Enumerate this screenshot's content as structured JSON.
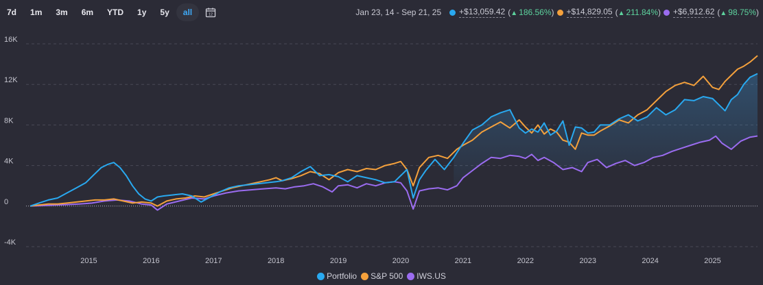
{
  "toolbar": {
    "ranges": [
      "7d",
      "1m",
      "3m",
      "6m",
      "YTD",
      "1y",
      "5y",
      "all"
    ],
    "active": "all",
    "calendar_icon": "calendar-icon"
  },
  "summary": {
    "date_range": "Jan 23, 14 - Sep 21, 25",
    "items": [
      {
        "gain": "+$13,059.42",
        "pct": "186.56%",
        "color": "#29a9f0"
      },
      {
        "gain": "+$14,829.05",
        "pct": "211.84%",
        "color": "#f5a13c"
      },
      {
        "gain": "+$6,912.62",
        "pct": "98.75%",
        "color": "#9b6cf0"
      }
    ]
  },
  "legend": [
    {
      "label": "Portfolio",
      "color": "#29a9f0"
    },
    {
      "label": "S&P 500",
      "color": "#f5a13c"
    },
    {
      "label": "IWS.US",
      "color": "#9b6cf0"
    }
  ],
  "chart_data": {
    "type": "line",
    "xlabel": "",
    "ylabel": "",
    "ylim": [
      -4000,
      16000
    ],
    "xlim": [
      2014.06,
      2025.72
    ],
    "y_ticks": [
      -4000,
      0,
      4000,
      8000,
      12000,
      16000
    ],
    "y_tick_labels": [
      "-4K",
      "0",
      "4K",
      "8K",
      "12K",
      "16K"
    ],
    "x_ticks": [
      2015,
      2016,
      2017,
      2018,
      2019,
      2020,
      2021,
      2022,
      2023,
      2024,
      2025
    ],
    "grid": true,
    "legend_position": "bottom-center",
    "series": [
      {
        "name": "Portfolio",
        "x": [
          2014.06,
          2014.2,
          2014.35,
          2014.5,
          2014.65,
          2014.8,
          2014.95,
          2015.1,
          2015.2,
          2015.3,
          2015.4,
          2015.5,
          2015.6,
          2015.7,
          2015.8,
          2015.9,
          2016.0,
          2016.1,
          2016.2,
          2016.35,
          2016.5,
          2016.65,
          2016.8,
          2016.95,
          2017.1,
          2017.25,
          2017.4,
          2017.55,
          2017.7,
          2017.85,
          2018.0,
          2018.1,
          2018.25,
          2018.4,
          2018.55,
          2018.7,
          2018.85,
          2019.0,
          2019.15,
          2019.3,
          2019.45,
          2019.6,
          2019.75,
          2019.9,
          2020.0,
          2020.1,
          2020.2,
          2020.3,
          2020.4,
          2020.55,
          2020.7,
          2020.85,
          2021.0,
          2021.15,
          2021.3,
          2021.45,
          2021.6,
          2021.75,
          2021.9,
          2022.0,
          2022.1,
          2022.2,
          2022.3,
          2022.4,
          2022.5,
          2022.6,
          2022.7,
          2022.8,
          2022.9,
          2023.0,
          2023.1,
          2023.2,
          2023.35,
          2023.5,
          2023.65,
          2023.8,
          2023.95,
          2024.1,
          2024.25,
          2024.4,
          2024.55,
          2024.7,
          2024.85,
          2025.0,
          2025.1,
          2025.2,
          2025.3,
          2025.4,
          2025.5,
          2025.6,
          2025.72
        ],
        "values": [
          0,
          300,
          600,
          800,
          1300,
          1800,
          2300,
          3200,
          3800,
          4100,
          4300,
          3800,
          3000,
          2000,
          1200,
          700,
          500,
          900,
          1000,
          1100,
          1200,
          1000,
          400,
          900,
          1400,
          1800,
          2000,
          2100,
          2200,
          2300,
          2400,
          2500,
          2800,
          3400,
          3900,
          3000,
          3100,
          2900,
          2400,
          3000,
          2800,
          2600,
          2300,
          2400,
          3000,
          3600,
          800,
          2600,
          3500,
          4600,
          3600,
          4800,
          6200,
          7500,
          8000,
          8800,
          9200,
          9500,
          7700,
          7200,
          7600,
          7300,
          8200,
          7000,
          7400,
          8400,
          6000,
          7800,
          7700,
          7200,
          7300,
          8000,
          8000,
          8600,
          9000,
          8400,
          8800,
          9700,
          9000,
          9500,
          10500,
          10400,
          10800,
          10600,
          10000,
          9400,
          10500,
          11000,
          12000,
          12700,
          13059
        ]
      },
      {
        "name": "S&P 500",
        "x": [
          2014.06,
          2014.2,
          2014.35,
          2014.5,
          2014.65,
          2014.8,
          2014.95,
          2015.1,
          2015.25,
          2015.4,
          2015.55,
          2015.7,
          2015.85,
          2016.0,
          2016.1,
          2016.25,
          2016.4,
          2016.55,
          2016.7,
          2016.85,
          2017.0,
          2017.15,
          2017.3,
          2017.45,
          2017.6,
          2017.75,
          2017.9,
          2018.0,
          2018.1,
          2018.25,
          2018.4,
          2018.55,
          2018.7,
          2018.85,
          2019.0,
          2019.15,
          2019.3,
          2019.45,
          2019.6,
          2019.75,
          2019.9,
          2020.0,
          2020.1,
          2020.2,
          2020.3,
          2020.45,
          2020.6,
          2020.75,
          2020.9,
          2021.0,
          2021.15,
          2021.3,
          2021.45,
          2021.6,
          2021.75,
          2021.9,
          2022.0,
          2022.1,
          2022.2,
          2022.3,
          2022.4,
          2022.5,
          2022.6,
          2022.7,
          2022.8,
          2022.9,
          2023.0,
          2023.1,
          2023.2,
          2023.35,
          2023.5,
          2023.65,
          2023.8,
          2023.95,
          2024.1,
          2024.25,
          2024.4,
          2024.55,
          2024.7,
          2024.85,
          2025.0,
          2025.1,
          2025.2,
          2025.3,
          2025.4,
          2025.5,
          2025.6,
          2025.72
        ],
        "values": [
          0,
          100,
          200,
          200,
          300,
          400,
          500,
          600,
          600,
          700,
          500,
          300,
          400,
          300,
          0,
          500,
          700,
          800,
          1000,
          900,
          1200,
          1500,
          1800,
          2000,
          2200,
          2400,
          2600,
          2800,
          2500,
          2700,
          3000,
          3400,
          3200,
          2600,
          3300,
          3600,
          3400,
          3700,
          3600,
          4000,
          4200,
          4400,
          3600,
          2000,
          3800,
          4800,
          5000,
          4700,
          5600,
          6000,
          6500,
          7300,
          7800,
          8300,
          7700,
          8500,
          7800,
          7200,
          8000,
          7100,
          7600,
          7300,
          6500,
          6300,
          5600,
          7200,
          7000,
          7000,
          7400,
          7900,
          8500,
          8200,
          9000,
          9500,
          10400,
          11300,
          11900,
          12200,
          11900,
          12800,
          11700,
          11500,
          12300,
          12900,
          13500,
          13800,
          14200,
          14829
        ]
      },
      {
        "name": "IWS.US",
        "x": [
          2014.06,
          2014.25,
          2014.45,
          2014.65,
          2014.85,
          2015.05,
          2015.25,
          2015.45,
          2015.65,
          2015.85,
          2016.0,
          2016.1,
          2016.25,
          2016.45,
          2016.65,
          2016.85,
          2017.0,
          2017.2,
          2017.4,
          2017.6,
          2017.8,
          2018.0,
          2018.15,
          2018.3,
          2018.45,
          2018.6,
          2018.75,
          2018.9,
          2019.0,
          2019.15,
          2019.3,
          2019.45,
          2019.6,
          2019.75,
          2019.9,
          2020.0,
          2020.1,
          2020.2,
          2020.3,
          2020.45,
          2020.6,
          2020.75,
          2020.9,
          2021.0,
          2021.15,
          2021.3,
          2021.45,
          2021.6,
          2021.75,
          2021.9,
          2022.0,
          2022.1,
          2022.2,
          2022.3,
          2022.45,
          2022.6,
          2022.75,
          2022.9,
          2023.0,
          2023.15,
          2023.3,
          2023.45,
          2023.6,
          2023.75,
          2023.9,
          2024.05,
          2024.2,
          2024.35,
          2024.5,
          2024.65,
          2024.8,
          2024.95,
          2025.05,
          2025.15,
          2025.3,
          2025.45,
          2025.6,
          2025.72
        ],
        "values": [
          0,
          50,
          100,
          150,
          200,
          300,
          500,
          600,
          500,
          200,
          100,
          -400,
          200,
          500,
          800,
          700,
          1000,
          1300,
          1500,
          1600,
          1700,
          1800,
          1700,
          1900,
          2000,
          2200,
          1900,
          1400,
          2000,
          2100,
          1800,
          2200,
          2000,
          2300,
          2400,
          2300,
          1500,
          -300,
          1500,
          1700,
          1800,
          1600,
          2000,
          2800,
          3500,
          4200,
          4800,
          4700,
          5000,
          4900,
          4700,
          5100,
          4500,
          4800,
          4300,
          3600,
          3800,
          3400,
          4300,
          4600,
          3800,
          4200,
          4500,
          4000,
          4300,
          4800,
          5000,
          5400,
          5700,
          6000,
          6300,
          6500,
          6900,
          6200,
          5600,
          6400,
          6800,
          6912
        ]
      }
    ]
  }
}
